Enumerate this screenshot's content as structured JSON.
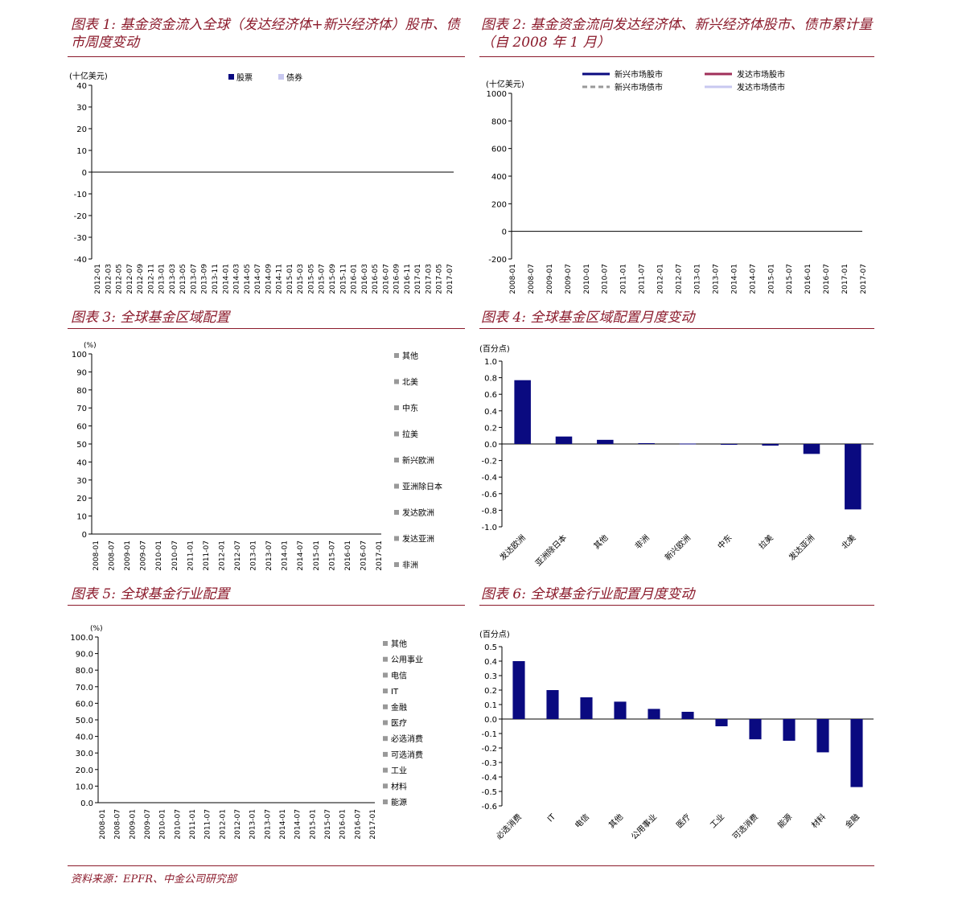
{
  "source": "资料来源：EPFR、中金公司研究部",
  "colors": {
    "title": "#8b1a2b",
    "navy": "#0a0a80",
    "lavender": "#c8c8f0",
    "maroon": "#a0305a",
    "grey": "#999999"
  },
  "charts": [
    {
      "title": "图表 1:  基金资金流入全球（发达经济体+新兴经济体）股市、债市周度变动",
      "chart_data": {
        "type": "bar",
        "unit_label": "(十亿美元)",
        "series": [
          {
            "name": "股票"
          },
          {
            "name": "债券"
          }
        ],
        "categories": [
          "2012-01",
          "2012-03",
          "2012-05",
          "2012-07",
          "2012-09",
          "2012-11",
          "2013-01",
          "2013-03",
          "2013-05",
          "2013-07",
          "2013-09",
          "2013-11",
          "2014-01",
          "2014-03",
          "2014-05",
          "2014-07",
          "2014-09",
          "2014-11",
          "2015-01",
          "2015-03",
          "2015-05",
          "2015-07",
          "2015-09",
          "2015-11",
          "2016-01",
          "2016-03",
          "2016-05",
          "2016-07",
          "2016-09",
          "2016-11",
          "2017-01",
          "2017-03",
          "2017-05",
          "2017-07"
        ],
        "yticks": [
          "40",
          "30",
          "20",
          "10",
          "0",
          "-10",
          "-20",
          "-30",
          "-40"
        ],
        "ylim": [
          -40,
          40
        ]
      }
    },
    {
      "title": "图表 2:  基金资金流向发达经济体、新兴经济体股市、债市累计量（自 2008 年 1 月）",
      "chart_data": {
        "type": "line",
        "unit_label": "(十亿美元)",
        "series": [
          {
            "name": "新兴市场股市",
            "color": "#0a0a80",
            "dashed": false
          },
          {
            "name": "发达市场股市",
            "color": "#a0305a",
            "dashed": false
          },
          {
            "name": "新兴市场债市",
            "color": "#999999",
            "dashed": true
          },
          {
            "name": "发达市场债市",
            "color": "#c8c8f0",
            "dashed": false
          }
        ],
        "categories": [
          "2008-01",
          "2008-07",
          "2009-01",
          "2009-07",
          "2010-01",
          "2010-07",
          "2011-01",
          "2011-07",
          "2012-01",
          "2012-07",
          "2013-01",
          "2013-07",
          "2014-01",
          "2014-07",
          "2015-01",
          "2015-07",
          "2016-01",
          "2016-07",
          "2017-01",
          "2017-07"
        ],
        "yticks": [
          "1000",
          "800",
          "600",
          "400",
          "200",
          "0",
          "-200"
        ],
        "ylim": [
          -200,
          1000
        ]
      }
    },
    {
      "title": "图表 3:  全球基金区域配置",
      "chart_data": {
        "type": "area",
        "unit_label": "(%)",
        "legend": [
          "其他",
          "北美",
          "中东",
          "拉美",
          "新兴欧洲",
          "亚洲除日本",
          "发达欧洲",
          "发达亚洲",
          "非洲"
        ],
        "categories": [
          "2008-01",
          "2008-07",
          "2009-01",
          "2009-07",
          "2010-01",
          "2010-07",
          "2011-01",
          "2011-07",
          "2012-01",
          "2012-07",
          "2013-01",
          "2013-07",
          "2014-01",
          "2014-07",
          "2015-01",
          "2015-07",
          "2016-01",
          "2016-07",
          "2017-01"
        ],
        "yticks": [
          "100",
          "90",
          "80",
          "70",
          "60",
          "50",
          "40",
          "30",
          "20",
          "10",
          "0"
        ],
        "ylim": [
          0,
          100
        ]
      }
    },
    {
      "title": "图表 4:  全球基金区域配置月度变动",
      "chart_data": {
        "type": "bar",
        "unit_label": "(百分点)",
        "categories": [
          "发达欧洲",
          "亚洲除日本",
          "其他",
          "非洲",
          "新兴欧洲",
          "中东",
          "拉美",
          "发达亚洲",
          "北美"
        ],
        "values": [
          0.77,
          0.09,
          0.05,
          0.01,
          0.005,
          -0.01,
          -0.02,
          -0.12,
          -0.79
        ],
        "yticks": [
          "1.0",
          "0.8",
          "0.6",
          "0.4",
          "0.2",
          "0.0",
          "-0.2",
          "-0.4",
          "-0.6",
          "-0.8",
          "-1.0"
        ],
        "ylim": [
          -1.0,
          1.0
        ]
      }
    },
    {
      "title": "图表 5:  全球基金行业配置",
      "chart_data": {
        "type": "area",
        "unit_label": "(%)",
        "legend": [
          "其他",
          "公用事业",
          "电信",
          "IT",
          "金融",
          "医疗",
          "必选消费",
          "可选消费",
          "工业",
          "材料",
          "能源"
        ],
        "categories": [
          "2008-01",
          "2008-07",
          "2009-01",
          "2009-07",
          "2010-01",
          "2010-07",
          "2011-01",
          "2011-07",
          "2012-01",
          "2012-07",
          "2013-01",
          "2013-07",
          "2014-01",
          "2014-07",
          "2015-01",
          "2015-07",
          "2016-01",
          "2016-07",
          "2017-01"
        ],
        "yticks": [
          "100.0",
          "90.0",
          "80.0",
          "70.0",
          "60.0",
          "50.0",
          "40.0",
          "30.0",
          "20.0",
          "10.0",
          "0.0"
        ],
        "ylim": [
          0,
          100
        ]
      }
    },
    {
      "title": "图表 6:  全球基金行业配置月度变动",
      "chart_data": {
        "type": "bar",
        "unit_label": "(百分点)",
        "categories": [
          "必选消费",
          "IT",
          "电信",
          "其他",
          "公用事业",
          "医疗",
          "工业",
          "可选消费",
          "能源",
          "材料",
          "金融"
        ],
        "values": [
          0.4,
          0.2,
          0.15,
          0.12,
          0.07,
          0.05,
          -0.05,
          -0.14,
          -0.15,
          -0.23,
          -0.47
        ],
        "yticks": [
          "0.5",
          "0.4",
          "0.3",
          "0.2",
          "0.1",
          "0.0",
          "-0.1",
          "-0.2",
          "-0.3",
          "-0.4",
          "-0.5",
          "-0.6"
        ],
        "ylim": [
          -0.6,
          0.5
        ]
      }
    }
  ]
}
